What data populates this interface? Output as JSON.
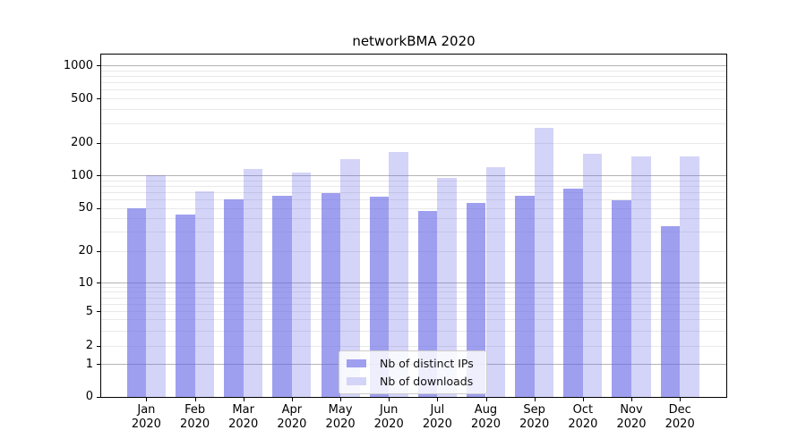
{
  "title": "networkBMA 2020",
  "chart_data": {
    "type": "bar",
    "title": "networkBMA 2020",
    "categories": [
      "Jan 2020",
      "Feb 2020",
      "Mar 2020",
      "Apr 2020",
      "May 2020",
      "Jun 2020",
      "Jul 2020",
      "Aug 2020",
      "Sep 2020",
      "Oct 2020",
      "Nov 2020",
      "Dec 2020"
    ],
    "series": [
      {
        "name": "Nb of distinct IPs",
        "values": [
          50,
          43,
          60,
          65,
          68,
          64,
          47,
          56,
          65,
          76,
          59,
          34
        ],
        "fill": "rgba(100,100,230,0.62)",
        "legend_color": "#9f9fef"
      },
      {
        "name": "Nb of downloads",
        "values": [
          100,
          71,
          114,
          105,
          140,
          164,
          94,
          118,
          272,
          157,
          148,
          150
        ],
        "fill": "rgba(100,100,230,0.28)",
        "legend_color": "#d4d4f8"
      }
    ],
    "yscale": "symlog",
    "yticks": [
      0,
      1,
      2,
      5,
      10,
      20,
      50,
      100,
      200,
      500,
      1000
    ],
    "ylim": [
      0,
      1300
    ],
    "xlabel": "",
    "ylabel": "",
    "grid": true,
    "grid_major_color": "#b4b4b4",
    "grid_minor_color": "#e9e9e9",
    "legend_position": "lower center"
  }
}
